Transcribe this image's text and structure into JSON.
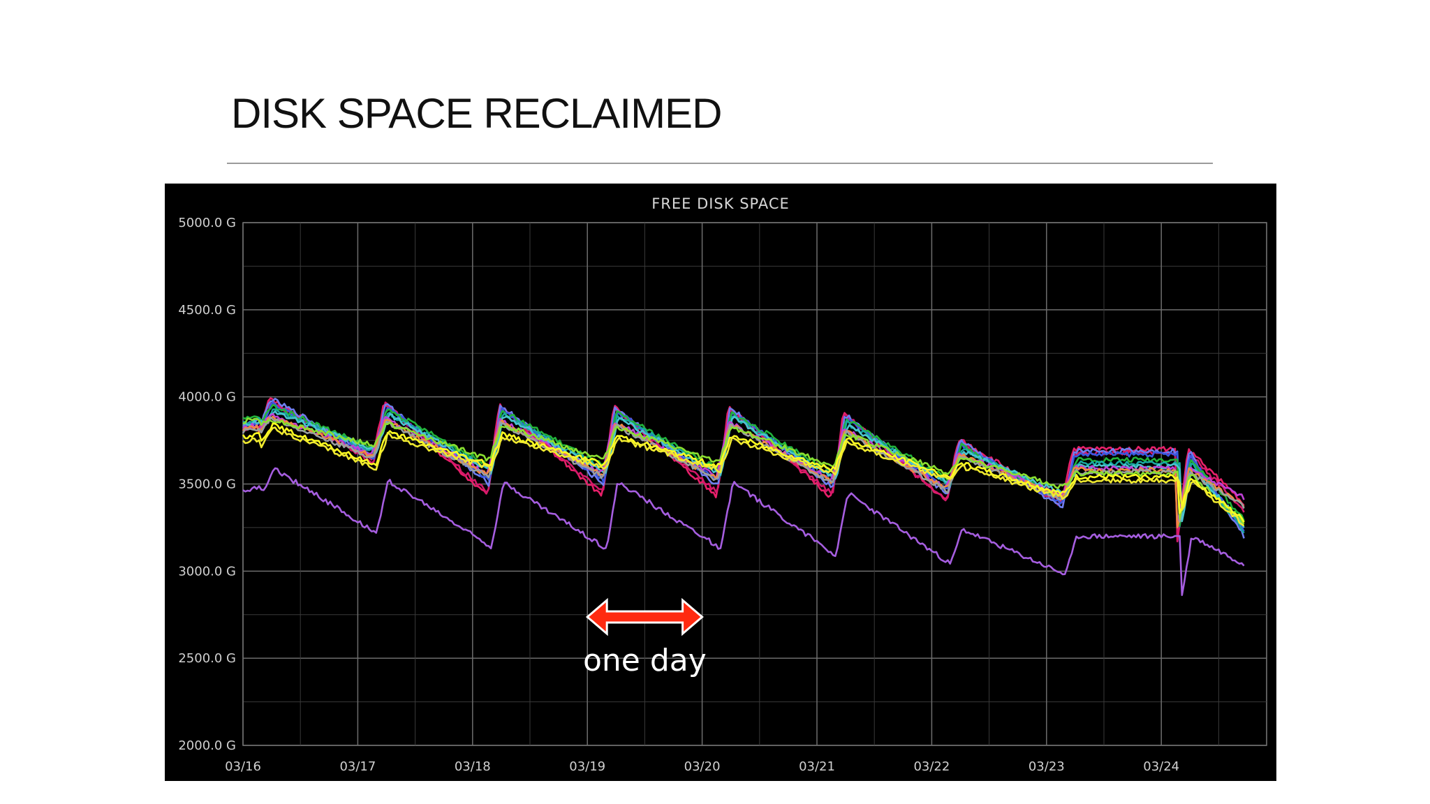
{
  "slide": {
    "title": "DISK SPACE RECLAIMED"
  },
  "annotation": {
    "label": "one day",
    "arrow_color": "#ff2a10",
    "arrow_from": "03/19",
    "arrow_to": "03/20"
  },
  "chart_data": {
    "type": "line",
    "title": "FREE DISK SPACE",
    "xlabel": "",
    "ylabel": "",
    "x_ticks": [
      "03/16",
      "03/17",
      "03/18",
      "03/19",
      "03/20",
      "03/21",
      "03/22",
      "03/23",
      "03/24"
    ],
    "y_ticks": [
      "5000.0 G",
      "4500.0 G",
      "4000.0 G",
      "3500.0 G",
      "3000.0 G",
      "2500.0 G",
      "2000.0 G"
    ],
    "ylim": [
      2000,
      5000
    ],
    "xlim": [
      "03/16",
      "03/24 ~17:00"
    ],
    "grid": true,
    "legend": "none",
    "background": "#000000",
    "series": [
      {
        "color": "#e8206a",
        "peaks": [
          4110,
          3990,
          3970,
          3960,
          3950,
          3950,
          3910,
          3760,
          3700
        ],
        "troughs": [
          3800,
          3640,
          3430,
          3430,
          3430,
          3420,
          3400,
          3400,
          3120
        ],
        "end": 3390
      },
      {
        "color": "#d4186a",
        "peaks": [
          4090,
          3980,
          3960,
          3940,
          3930,
          3930,
          3900,
          3740,
          3680
        ],
        "troughs": [
          3790,
          3620,
          3450,
          3450,
          3450,
          3440,
          3410,
          3380,
          3140
        ],
        "end": 3350
      },
      {
        "color": "#6f7ef0",
        "peaks": [
          4100,
          3990,
          3960,
          3950,
          3940,
          3940,
          3900,
          3750,
          3690
        ],
        "troughs": [
          3820,
          3660,
          3500,
          3500,
          3490,
          3480,
          3440,
          3360,
          3180
        ],
        "end": 3200
      },
      {
        "color": "#3a58e0",
        "peaks": [
          4080,
          3960,
          3940,
          3930,
          3920,
          3920,
          3880,
          3730,
          3670
        ],
        "troughs": [
          3810,
          3650,
          3520,
          3520,
          3510,
          3500,
          3460,
          3390,
          3200
        ],
        "end": 3240
      },
      {
        "color": "#22b33a",
        "peaks": [
          4060,
          3950,
          3930,
          3920,
          3910,
          3910,
          3870,
          3720,
          3640
        ],
        "troughs": [
          3850,
          3700,
          3600,
          3600,
          3580,
          3560,
          3520,
          3410,
          3250
        ],
        "end": 3300
      },
      {
        "color": "#18a8a0",
        "peaks": [
          4040,
          3930,
          3910,
          3900,
          3890,
          3890,
          3850,
          3700,
          3620
        ],
        "troughs": [
          3830,
          3680,
          3580,
          3580,
          3560,
          3540,
          3500,
          3420,
          3200
        ],
        "end": 3230
      },
      {
        "color": "#4ac4d0",
        "peaks": [
          4020,
          3920,
          3900,
          3890,
          3880,
          3880,
          3840,
          3690,
          3600
        ],
        "troughs": [
          3820,
          3690,
          3570,
          3560,
          3550,
          3530,
          3500,
          3440,
          3230
        ],
        "end": 3260
      },
      {
        "color": "#c040d8",
        "peaks": [
          4000,
          3900,
          3880,
          3870,
          3860,
          3860,
          3820,
          3680,
          3590
        ],
        "troughs": [
          3800,
          3670,
          3560,
          3560,
          3540,
          3520,
          3480,
          3430,
          3240
        ],
        "end": 3420
      },
      {
        "color": "#f08a40",
        "peaks": [
          3990,
          3890,
          3870,
          3860,
          3850,
          3850,
          3810,
          3670,
          3580
        ],
        "troughs": [
          3790,
          3660,
          3550,
          3550,
          3530,
          3510,
          3470,
          3420,
          3230
        ],
        "end": 3380
      },
      {
        "color": "#9aa0a0",
        "peaks": [
          3980,
          3880,
          3860,
          3850,
          3840,
          3840,
          3800,
          3660,
          3570
        ],
        "troughs": [
          3780,
          3650,
          3540,
          3540,
          3520,
          3500,
          3460,
          3410,
          3220
        ],
        "end": 3370
      },
      {
        "color": "#8be030",
        "peaks": [
          3970,
          3870,
          3850,
          3840,
          3830,
          3830,
          3790,
          3650,
          3560
        ],
        "troughs": [
          3840,
          3720,
          3640,
          3640,
          3620,
          3600,
          3560,
          3480,
          3280
        ],
        "end": 3280
      },
      {
        "color": "#ffff20",
        "peaks": [
          3940,
          3840,
          3800,
          3790,
          3780,
          3780,
          3760,
          3620,
          3540
        ],
        "troughs": [
          3750,
          3610,
          3610,
          3610,
          3600,
          3580,
          3540,
          3440,
          3320
        ],
        "end": 3290
      },
      {
        "color": "#f0ea30",
        "peaks": [
          3910,
          3820,
          3780,
          3770,
          3760,
          3760,
          3740,
          3600,
          3520
        ],
        "troughs": [
          3720,
          3590,
          3590,
          3590,
          3580,
          3560,
          3520,
          3420,
          3300
        ],
        "end": 3270
      },
      {
        "color": "#a65ee0",
        "peaks": [
          3720,
          3590,
          3520,
          3510,
          3510,
          3510,
          3450,
          3240,
          3200
        ],
        "troughs": [
          3440,
          3220,
          3140,
          3130,
          3130,
          3090,
          3040,
          2980,
          2810
        ],
        "end": 3040
      }
    ]
  }
}
